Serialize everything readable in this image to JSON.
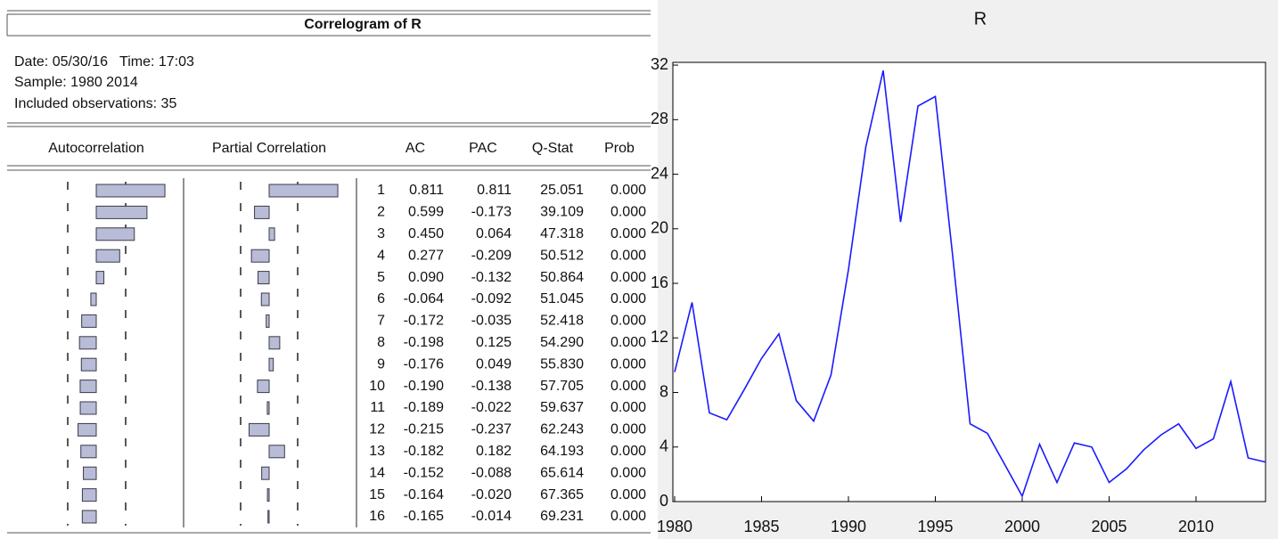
{
  "correlogram": {
    "title": "Correlogram of R",
    "info": [
      "Date: 05/30/16   Time: 17:03",
      "Sample: 1980 2014",
      "Included observations: 35"
    ],
    "columns": [
      "Autocorrelation",
      "Partial Correlation",
      "AC",
      "PAC",
      "Q-Stat",
      "Prob"
    ],
    "rows": [
      [
        "1",
        "0.811",
        "0.811",
        "25.051",
        "0.000"
      ],
      [
        "2",
        "0.599",
        "-0.173",
        "39.109",
        "0.000"
      ],
      [
        "3",
        "0.450",
        "0.064",
        "47.318",
        "0.000"
      ],
      [
        "4",
        "0.277",
        "-0.209",
        "50.512",
        "0.000"
      ],
      [
        "5",
        "0.090",
        "-0.132",
        "50.864",
        "0.000"
      ],
      [
        "6",
        "-0.064",
        "-0.092",
        "51.045",
        "0.000"
      ],
      [
        "7",
        "-0.172",
        "-0.035",
        "52.418",
        "0.000"
      ],
      [
        "8",
        "-0.198",
        "0.125",
        "54.290",
        "0.000"
      ],
      [
        "9",
        "-0.176",
        "0.049",
        "55.830",
        "0.000"
      ],
      [
        "10",
        "-0.190",
        "-0.138",
        "57.705",
        "0.000"
      ],
      [
        "11",
        "-0.189",
        "-0.022",
        "59.637",
        "0.000"
      ],
      [
        "12",
        "-0.215",
        "-0.237",
        "62.243",
        "0.000"
      ],
      [
        "13",
        "-0.182",
        "0.182",
        "64.193",
        "0.000"
      ],
      [
        "14",
        "-0.152",
        "-0.088",
        "65.614",
        "0.000"
      ],
      [
        "15",
        "-0.164",
        "-0.020",
        "67.365",
        "0.000"
      ],
      [
        "16",
        "-0.165",
        "-0.014",
        "69.231",
        "0.000"
      ]
    ]
  },
  "chart_data": {
    "type": "line",
    "title": "R",
    "x": [
      1980,
      1981,
      1982,
      1983,
      1984,
      1985,
      1986,
      1987,
      1988,
      1989,
      1990,
      1991,
      1992,
      1993,
      1994,
      1995,
      1996,
      1997,
      1998,
      1999,
      2000,
      2001,
      2002,
      2003,
      2004,
      2005,
      2006,
      2007,
      2008,
      2009,
      2010,
      2011,
      2012,
      2013,
      2014
    ],
    "series": [
      {
        "name": "R",
        "color": "#1a1aff",
        "values": [
          9.5,
          14.6,
          6.5,
          6.0,
          8.2,
          10.5,
          12.3,
          7.4,
          5.9,
          9.3,
          17.0,
          26.0,
          31.6,
          20.5,
          29.0,
          29.7,
          18.0,
          5.7,
          5.0,
          2.7,
          0.4,
          4.2,
          1.4,
          4.3,
          4.0,
          1.4,
          2.4,
          3.8,
          4.9,
          5.7,
          3.9,
          4.6,
          8.8,
          3.2,
          2.9
        ]
      }
    ],
    "xlim": [
      1980,
      2014
    ],
    "xticks": [
      1980,
      1985,
      1990,
      1995,
      2000,
      2005,
      2010
    ],
    "ylim": [
      0,
      32.2
    ],
    "yticks": [
      0,
      4,
      8,
      12,
      16,
      20,
      24,
      28,
      32
    ]
  }
}
